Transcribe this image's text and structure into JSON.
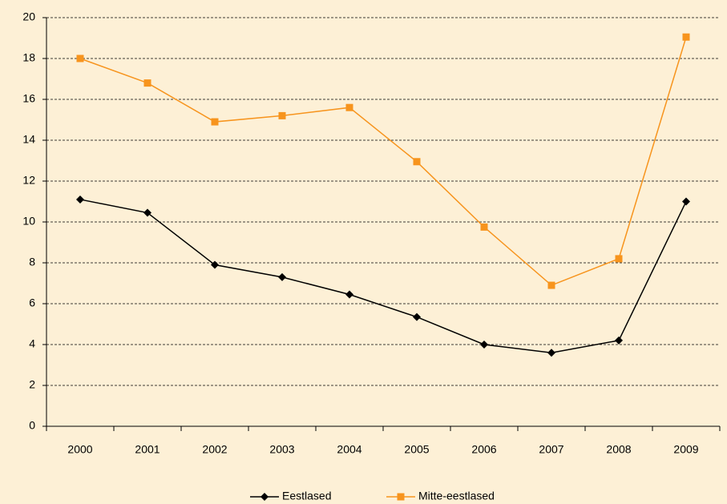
{
  "chart_data": {
    "type": "line",
    "categories": [
      "2000",
      "2001",
      "2002",
      "2003",
      "2004",
      "2005",
      "2006",
      "2007",
      "2008",
      "2009"
    ],
    "series": [
      {
        "name": "Eestlased",
        "color": "#000000",
        "marker": "diamond",
        "values": [
          11.1,
          10.45,
          7.9,
          7.3,
          6.45,
          5.35,
          4.0,
          3.6,
          4.2,
          11.0
        ]
      },
      {
        "name": "Mitte-eestlased",
        "color": "#f7941d",
        "marker": "square",
        "values": [
          18.0,
          16.8,
          14.9,
          15.2,
          15.6,
          12.95,
          9.75,
          6.9,
          8.2,
          19.05
        ]
      }
    ],
    "ylim": [
      0,
      20
    ],
    "yticks": [
      0,
      2,
      4,
      6,
      8,
      10,
      12,
      14,
      16,
      18,
      20
    ],
    "grid": true,
    "legend": "bottom"
  }
}
